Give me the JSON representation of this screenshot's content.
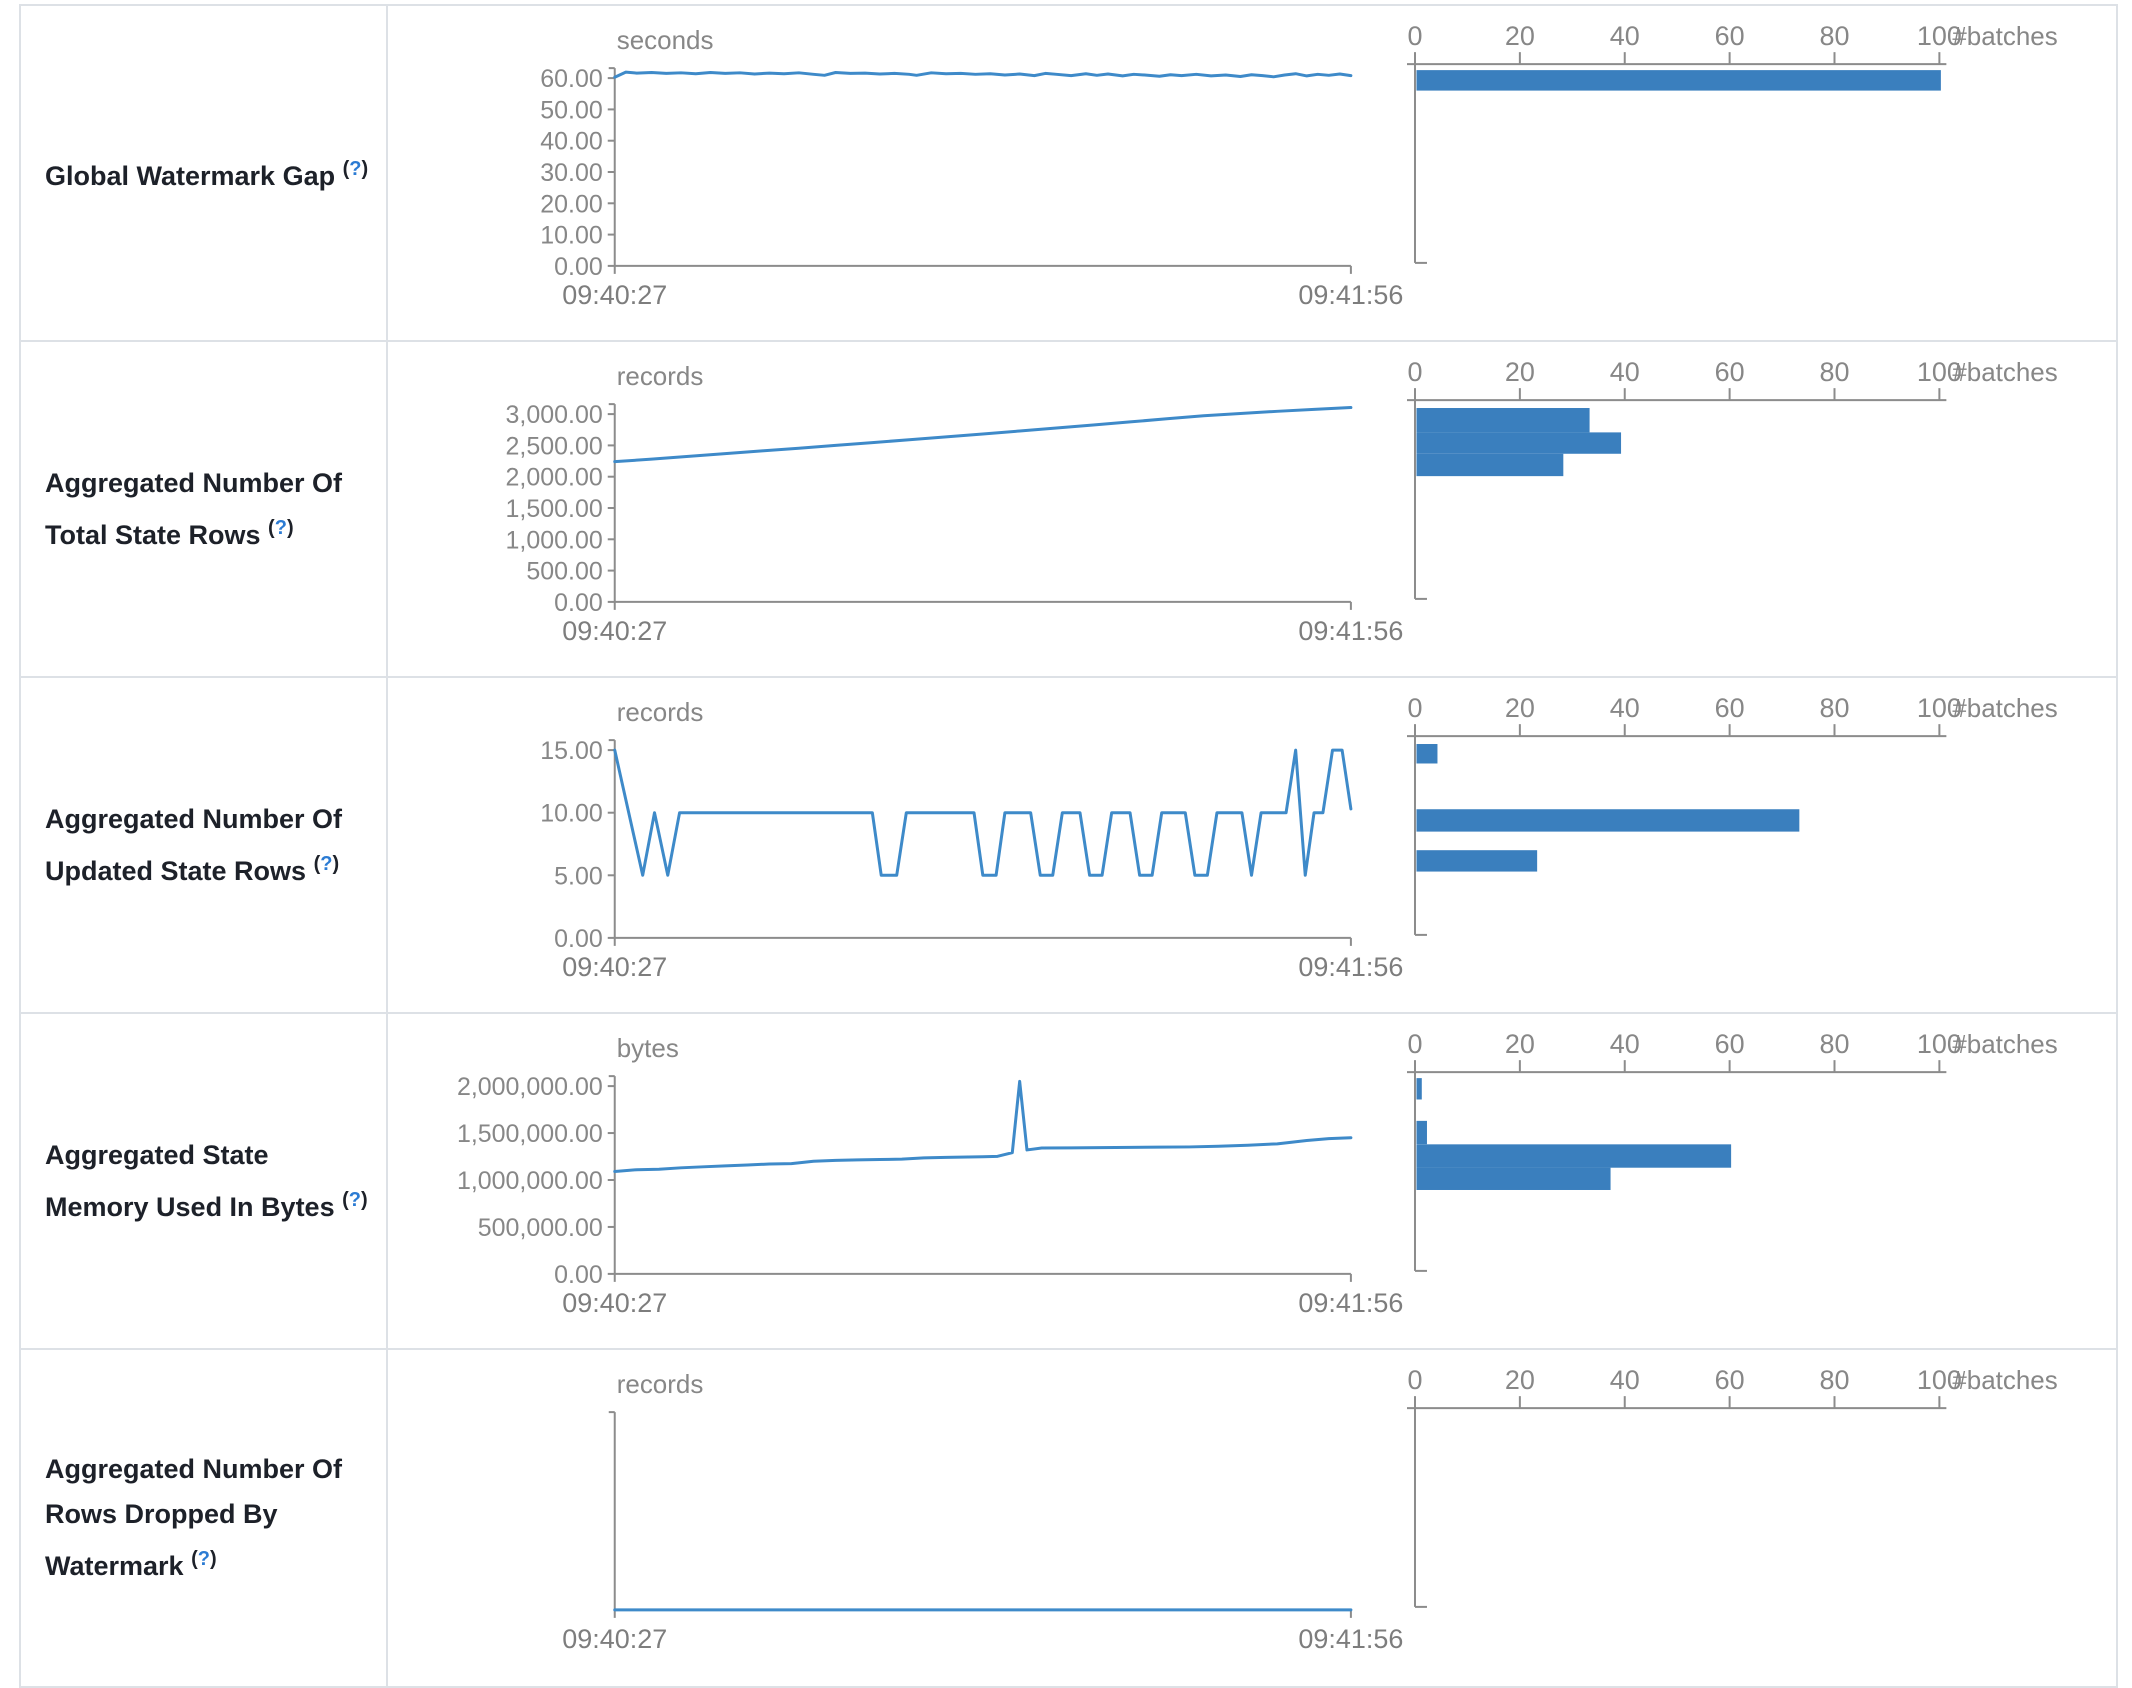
{
  "colors": {
    "line": "#3e8ac9",
    "bar": "#3a7fbe",
    "axis": "#8c8c8c",
    "tick_text": "#878787",
    "label_text": "#1d2129",
    "help_accent": "#2b7bd3",
    "table_border": "#dde1e6"
  },
  "time_axis": {
    "start": "09:40:27",
    "end": "09:41:56"
  },
  "histogram_axis": {
    "tick_labels": [
      "0",
      "20",
      "40",
      "60",
      "80",
      "100"
    ],
    "tick_values": [
      0,
      20,
      40,
      60,
      80,
      100
    ],
    "label": "#batches"
  },
  "chart_data": [
    {
      "metric": "Global Watermark Gap",
      "help": "(?)",
      "timeline": {
        "type": "line",
        "unit": "seconds",
        "x_start": "09:40:27",
        "x_end": "09:41:56",
        "ymax": 60,
        "y_tick_labels": [
          "60.00",
          "50.00",
          "40.00",
          "30.00",
          "20.00",
          "10.00",
          "0.00"
        ],
        "points": [
          [
            0,
            60.3
          ],
          [
            0.015,
            61.9
          ],
          [
            0.03,
            61.6
          ],
          [
            0.05,
            61.8
          ],
          [
            0.07,
            61.5
          ],
          [
            0.09,
            61.7
          ],
          [
            0.11,
            61.4
          ],
          [
            0.13,
            61.8
          ],
          [
            0.15,
            61.5
          ],
          [
            0.17,
            61.7
          ],
          [
            0.19,
            61.3
          ],
          [
            0.21,
            61.6
          ],
          [
            0.23,
            61.4
          ],
          [
            0.25,
            61.7
          ],
          [
            0.27,
            61.2
          ],
          [
            0.285,
            60.9
          ],
          [
            0.3,
            61.8
          ],
          [
            0.32,
            61.5
          ],
          [
            0.34,
            61.6
          ],
          [
            0.36,
            61.3
          ],
          [
            0.38,
            61.5
          ],
          [
            0.4,
            61.2
          ],
          [
            0.41,
            60.9
          ],
          [
            0.43,
            61.7
          ],
          [
            0.45,
            61.4
          ],
          [
            0.47,
            61.5
          ],
          [
            0.49,
            61.2
          ],
          [
            0.51,
            61.4
          ],
          [
            0.53,
            61.0
          ],
          [
            0.55,
            61.3
          ],
          [
            0.57,
            60.8
          ],
          [
            0.585,
            61.5
          ],
          [
            0.6,
            61.2
          ],
          [
            0.62,
            60.8
          ],
          [
            0.64,
            61.4
          ],
          [
            0.655,
            60.9
          ],
          [
            0.67,
            61.3
          ],
          [
            0.69,
            60.7
          ],
          [
            0.705,
            61.2
          ],
          [
            0.72,
            61.0
          ],
          [
            0.74,
            60.6
          ],
          [
            0.755,
            61.1
          ],
          [
            0.77,
            60.8
          ],
          [
            0.79,
            61.2
          ],
          [
            0.81,
            60.7
          ],
          [
            0.83,
            61.0
          ],
          [
            0.85,
            60.5
          ],
          [
            0.865,
            61.1
          ],
          [
            0.88,
            60.8
          ],
          [
            0.895,
            60.4
          ],
          [
            0.91,
            61.0
          ],
          [
            0.925,
            61.4
          ],
          [
            0.94,
            60.7
          ],
          [
            0.955,
            61.2
          ],
          [
            0.97,
            60.9
          ],
          [
            0.985,
            61.3
          ],
          [
            1,
            60.8
          ]
        ]
      },
      "histogram": {
        "type": "bar",
        "xlabel": "#batches",
        "x_ticks": [
          0,
          20,
          40,
          60,
          80,
          100
        ],
        "bars": [
          {
            "batches": 100,
            "pos": 0.01,
            "size": 0.105
          }
        ]
      }
    },
    {
      "metric": "Aggregated Number Of Total State Rows",
      "help": "(?)",
      "timeline": {
        "type": "line",
        "unit": "records",
        "x_start": "09:40:27",
        "x_end": "09:41:56",
        "ymax": 3000,
        "y_tick_labels": [
          "3,000.00",
          "2,500.00",
          "2,000.00",
          "1,500.00",
          "1,000.00",
          "500.00",
          "0.00"
        ],
        "points": [
          [
            0,
            2240
          ],
          [
            0.05,
            2281
          ],
          [
            0.1,
            2325
          ],
          [
            0.15,
            2368
          ],
          [
            0.2,
            2412
          ],
          [
            0.25,
            2455
          ],
          [
            0.3,
            2500
          ],
          [
            0.35,
            2545
          ],
          [
            0.4,
            2590
          ],
          [
            0.45,
            2636
          ],
          [
            0.5,
            2683
          ],
          [
            0.55,
            2730
          ],
          [
            0.6,
            2778
          ],
          [
            0.65,
            2826
          ],
          [
            0.7,
            2875
          ],
          [
            0.75,
            2925
          ],
          [
            0.8,
            2975
          ],
          [
            0.85,
            3010
          ],
          [
            0.9,
            3045
          ],
          [
            0.95,
            3075
          ],
          [
            1,
            3105
          ]
        ]
      },
      "histogram": {
        "type": "bar",
        "xlabel": "#batches",
        "x_ticks": [
          0,
          20,
          40,
          60,
          80,
          100
        ],
        "bars": [
          {
            "batches": 33,
            "pos": 0.02,
            "size": 0.125
          },
          {
            "batches": 39,
            "pos": 0.145,
            "size": 0.11
          },
          {
            "batches": 28,
            "pos": 0.255,
            "size": 0.115
          }
        ]
      }
    },
    {
      "metric": "Aggregated Number Of Updated State Rows",
      "help": "(?)",
      "timeline": {
        "type": "line",
        "unit": "records",
        "x_start": "09:40:27",
        "x_end": "09:41:56",
        "ymax": 15,
        "y_tick_labels": [
          "15.00",
          "10.00",
          "5.00",
          "0.00"
        ],
        "points": [
          [
            0,
            15
          ],
          [
            0.038,
            5
          ],
          [
            0.054,
            10
          ],
          [
            0.072,
            5
          ],
          [
            0.088,
            10
          ],
          [
            0.35,
            10
          ],
          [
            0.362,
            5
          ],
          [
            0.383,
            5
          ],
          [
            0.396,
            10
          ],
          [
            0.488,
            10
          ],
          [
            0.5,
            5
          ],
          [
            0.518,
            5
          ],
          [
            0.53,
            10
          ],
          [
            0.565,
            10
          ],
          [
            0.578,
            5
          ],
          [
            0.595,
            5
          ],
          [
            0.608,
            10
          ],
          [
            0.632,
            10
          ],
          [
            0.645,
            5
          ],
          [
            0.662,
            5
          ],
          [
            0.675,
            10
          ],
          [
            0.7,
            10
          ],
          [
            0.713,
            5
          ],
          [
            0.73,
            5
          ],
          [
            0.743,
            10
          ],
          [
            0.775,
            10
          ],
          [
            0.788,
            5
          ],
          [
            0.805,
            5
          ],
          [
            0.818,
            10
          ],
          [
            0.852,
            10
          ],
          [
            0.865,
            5
          ],
          [
            0.878,
            10
          ],
          [
            0.912,
            10
          ],
          [
            0.925,
            15
          ],
          [
            0.938,
            5
          ],
          [
            0.95,
            10
          ],
          [
            0.962,
            10
          ],
          [
            0.975,
            15
          ],
          [
            0.988,
            15
          ],
          [
            1,
            10.3
          ]
        ]
      },
      "histogram": {
        "type": "bar",
        "xlabel": "#batches",
        "x_ticks": [
          0,
          20,
          40,
          60,
          80,
          100
        ],
        "bars": [
          {
            "batches": 4,
            "pos": 0.02,
            "size": 0.1
          },
          {
            "batches": 73,
            "pos": 0.355,
            "size": 0.115
          },
          {
            "batches": 23,
            "pos": 0.565,
            "size": 0.11
          }
        ]
      }
    },
    {
      "metric": "Aggregated State Memory Used In Bytes",
      "help": "(?)",
      "timeline": {
        "type": "line",
        "unit": "bytes",
        "x_start": "09:40:27",
        "x_end": "09:41:56",
        "ymax": 2000000,
        "y_tick_labels": [
          "2,000,000.00",
          "1,500,000.00",
          "1,000,000.00",
          "500,000.00",
          "0.00"
        ],
        "points": [
          [
            0,
            1090000
          ],
          [
            0.03,
            1110000
          ],
          [
            0.06,
            1115000
          ],
          [
            0.09,
            1130000
          ],
          [
            0.12,
            1140000
          ],
          [
            0.15,
            1150000
          ],
          [
            0.18,
            1160000
          ],
          [
            0.21,
            1170000
          ],
          [
            0.24,
            1175000
          ],
          [
            0.27,
            1200000
          ],
          [
            0.3,
            1210000
          ],
          [
            0.33,
            1215000
          ],
          [
            0.36,
            1218000
          ],
          [
            0.39,
            1222000
          ],
          [
            0.42,
            1235000
          ],
          [
            0.45,
            1240000
          ],
          [
            0.48,
            1245000
          ],
          [
            0.5,
            1248000
          ],
          [
            0.52,
            1252000
          ],
          [
            0.54,
            1290000
          ],
          [
            0.55,
            2050000
          ],
          [
            0.56,
            1320000
          ],
          [
            0.58,
            1340000
          ],
          [
            0.62,
            1342000
          ],
          [
            0.66,
            1345000
          ],
          [
            0.7,
            1348000
          ],
          [
            0.74,
            1350000
          ],
          [
            0.78,
            1352000
          ],
          [
            0.82,
            1360000
          ],
          [
            0.86,
            1370000
          ],
          [
            0.9,
            1385000
          ],
          [
            0.94,
            1420000
          ],
          [
            0.97,
            1440000
          ],
          [
            1,
            1450000
          ]
        ]
      },
      "histogram": {
        "type": "bar",
        "xlabel": "#batches",
        "x_ticks": [
          0,
          20,
          40,
          60,
          80,
          100
        ],
        "bars": [
          {
            "batches": 1,
            "pos": 0.01,
            "size": 0.11
          },
          {
            "batches": 2,
            "pos": 0.23,
            "size": 0.12
          },
          {
            "batches": 60,
            "pos": 0.35,
            "size": 0.12
          },
          {
            "batches": 37,
            "pos": 0.47,
            "size": 0.115
          }
        ]
      }
    },
    {
      "metric": "Aggregated Number Of Rows Dropped By Watermark",
      "help": "(?)",
      "timeline": {
        "type": "line",
        "unit": "records",
        "x_start": "09:40:27",
        "x_end": "09:41:56",
        "ymax": 1,
        "y_tick_labels": [],
        "points": [
          [
            0,
            0
          ],
          [
            1,
            0
          ]
        ]
      },
      "histogram": {
        "type": "bar",
        "xlabel": "#batches",
        "x_ticks": [
          0,
          20,
          40,
          60,
          80,
          100
        ],
        "bars": []
      }
    }
  ]
}
